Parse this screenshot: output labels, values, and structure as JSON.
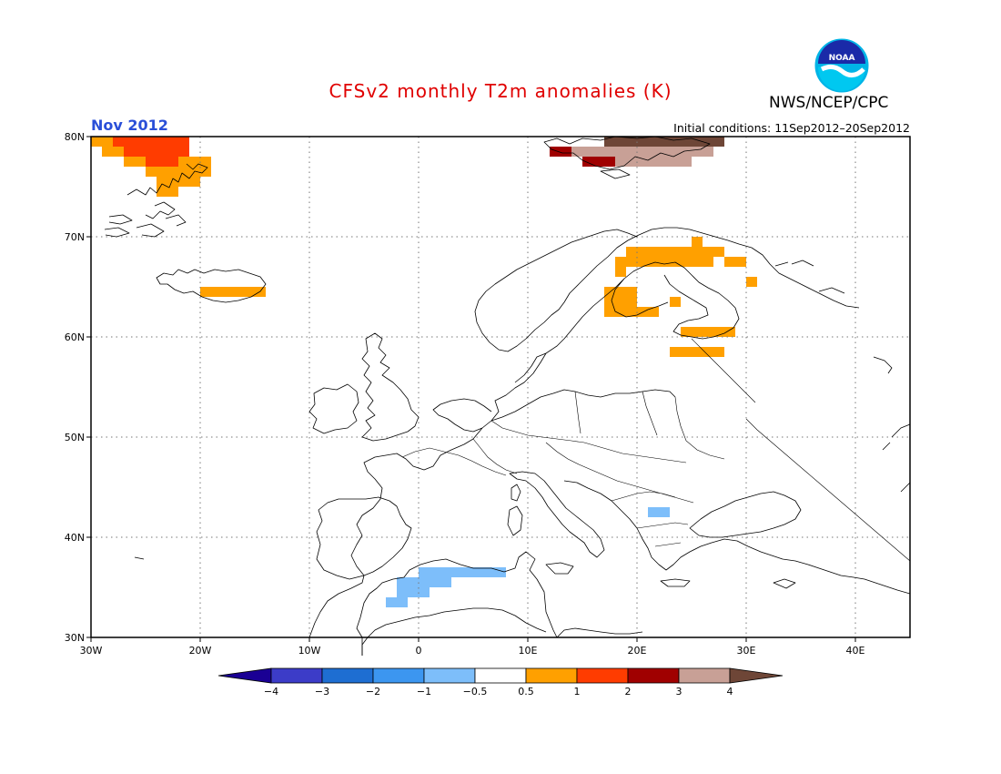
{
  "title": "CFSv2 monthly T2m anomalies (K)",
  "agency": "NWS/NCEP/CPC",
  "logo_text": "NOAA",
  "month": "Nov 2012",
  "initial_conditions": "Initial conditions: 11Sep2012–20Sep2012",
  "map": {
    "projection": "lat-lon",
    "lon_range": [
      -30,
      45
    ],
    "lat_range": [
      30,
      80
    ],
    "lon_ticks": [
      {
        "value": -30,
        "label": "30W"
      },
      {
        "value": -20,
        "label": "20W"
      },
      {
        "value": -10,
        "label": "10W"
      },
      {
        "value": 0,
        "label": "0"
      },
      {
        "value": 10,
        "label": "10E"
      },
      {
        "value": 20,
        "label": "20E"
      },
      {
        "value": 30,
        "label": "30E"
      },
      {
        "value": 40,
        "label": "40E"
      }
    ],
    "lat_ticks": [
      {
        "value": 30,
        "label": "30N"
      },
      {
        "value": 40,
        "label": "40N"
      },
      {
        "value": 50,
        "label": "50N"
      },
      {
        "value": 60,
        "label": "60N"
      },
      {
        "value": 70,
        "label": "70N"
      },
      {
        "value": 80,
        "label": "80N"
      }
    ],
    "gridlines": true,
    "anomaly_cells_deg": {
      "cell_size": 1,
      "cells": [
        {
          "lon0": -30,
          "lon1": -21,
          "lat0": 79,
          "lat1": 80,
          "level": "1-2"
        },
        {
          "lon0": -30,
          "lon1": -28,
          "lat0": 79,
          "lat1": 80,
          "level": "0.5-1"
        },
        {
          "lon0": -29,
          "lon1": -27,
          "lat0": 78,
          "lat1": 79,
          "level": "0.5-1"
        },
        {
          "lon0": -27,
          "lon1": -21,
          "lat0": 78,
          "lat1": 79,
          "level": "1-2"
        },
        {
          "lon0": -27,
          "lon1": -25,
          "lat0": 77,
          "lat1": 78,
          "level": "0.5-1"
        },
        {
          "lon0": -25,
          "lon1": -22,
          "lat0": 77,
          "lat1": 78,
          "level": "1-2"
        },
        {
          "lon0": -22,
          "lon1": -19,
          "lat0": 77,
          "lat1": 78,
          "level": "0.5-1"
        },
        {
          "lon0": -25,
          "lon1": -19,
          "lat0": 76,
          "lat1": 77,
          "level": "0.5-1"
        },
        {
          "lon0": -24,
          "lon1": -20,
          "lat0": 75,
          "lat1": 76,
          "level": "0.5-1"
        },
        {
          "lon0": -24,
          "lon1": -22,
          "lat0": 74,
          "lat1": 75,
          "level": "0.5-1"
        },
        {
          "lon0": -20,
          "lon1": -14,
          "lat0": 64,
          "lat1": 65,
          "level": "0.5-1"
        },
        {
          "lon0": 12,
          "lon1": 14,
          "lat0": 78,
          "lat1": 79,
          "level": "2-3"
        },
        {
          "lon0": 14,
          "lon1": 27,
          "lat0": 78,
          "lat1": 79,
          "level": "3-4"
        },
        {
          "lon0": 15,
          "lon1": 18,
          "lat0": 77,
          "lat1": 78,
          "level": "2-3"
        },
        {
          "lon0": 18,
          "lon1": 25,
          "lat0": 77,
          "lat1": 78,
          "level": "3-4"
        },
        {
          "lon0": 17,
          "lon1": 28,
          "lat0": 79,
          "lat1": 80,
          "level": ">4"
        },
        {
          "lon0": 19,
          "lon1": 28,
          "lat0": 68,
          "lat1": 69,
          "level": "0.5-1"
        },
        {
          "lon0": 25,
          "lon1": 26,
          "lat0": 69,
          "lat1": 70,
          "level": "0.5-1"
        },
        {
          "lon0": 18,
          "lon1": 27,
          "lat0": 67,
          "lat1": 68,
          "level": "0.5-1"
        },
        {
          "lon0": 28,
          "lon1": 30,
          "lat0": 67,
          "lat1": 68,
          "level": "0.5-1"
        },
        {
          "lon0": 18,
          "lon1": 19,
          "lat0": 66,
          "lat1": 67,
          "level": "0.5-1"
        },
        {
          "lon0": 30,
          "lon1": 31,
          "lat0": 65,
          "lat1": 66,
          "level": "0.5-1"
        },
        {
          "lon0": 17,
          "lon1": 20,
          "lat0": 62,
          "lat1": 65,
          "level": "0.5-1"
        },
        {
          "lon0": 20,
          "lon1": 22,
          "lat0": 62,
          "lat1": 63,
          "level": "0.5-1"
        },
        {
          "lon0": 23,
          "lon1": 24,
          "lat0": 63,
          "lat1": 64,
          "level": "0.5-1"
        },
        {
          "lon0": 24,
          "lon1": 29,
          "lat0": 60,
          "lat1": 61,
          "level": "0.5-1"
        },
        {
          "lon0": 23,
          "lon1": 28,
          "lat0": 58,
          "lat1": 59,
          "level": "0.5-1"
        },
        {
          "lon0": 21,
          "lon1": 23,
          "lat0": 42,
          "lat1": 43,
          "level": "-1--0.5"
        },
        {
          "lon0": 0,
          "lon1": 8,
          "lat0": 36,
          "lat1": 37,
          "level": "-1--0.5"
        },
        {
          "lon0": -2,
          "lon1": 3,
          "lat0": 35,
          "lat1": 36,
          "level": "-1--0.5"
        },
        {
          "lon0": -2,
          "lon1": 1,
          "lat0": 34,
          "lat1": 35,
          "level": "-1--0.5"
        },
        {
          "lon0": -3,
          "lon1": -1,
          "lat0": 33,
          "lat1": 34,
          "level": "-1--0.5"
        }
      ]
    }
  },
  "colorbar": {
    "bins": [
      {
        "level": "<-4",
        "color": "#1a0094"
      },
      {
        "level": "-4--3",
        "color": "#3c3cc8"
      },
      {
        "level": "-3--2",
        "color": "#1e6ed2"
      },
      {
        "level": "-2--1",
        "color": "#3c96f0"
      },
      {
        "level": "-1--0.5",
        "color": "#7dbefa"
      },
      {
        "level": "-0.5-0.5",
        "color": "#ffffff"
      },
      {
        "level": "0.5-1",
        "color": "#ffa000"
      },
      {
        "level": "1-2",
        "color": "#ff3c00"
      },
      {
        "level": "2-3",
        "color": "#a00000"
      },
      {
        "level": "3-4",
        "color": "#c8a096"
      },
      {
        "level": ">4",
        "color": "#6e4637"
      }
    ],
    "labels": [
      "−4",
      "−3",
      "−2",
      "−1",
      "−0.5",
      "0.5",
      "1",
      "2",
      "3",
      "4"
    ]
  }
}
